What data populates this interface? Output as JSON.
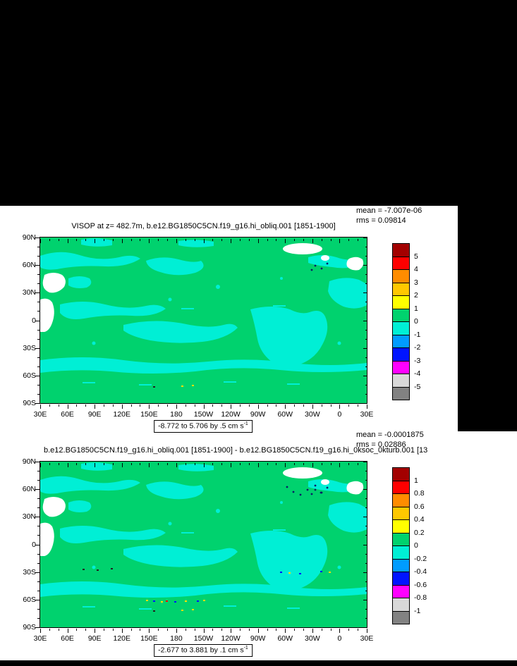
{
  "colors": {
    "background": "#000000",
    "page": "#ffffff",
    "ocean_green": "#00D26E",
    "anomaly_cyan": "#00EFD5",
    "land_white": "#ffffff",
    "frame_black": "#000000"
  },
  "colorbar_colors": [
    "#A30000",
    "#FF0000",
    "#FF8C00",
    "#FFC800",
    "#FFFF00",
    "#00D26E",
    "#00EFD5",
    "#009CFF",
    "#0014FF",
    "#FF00FF",
    "#D8D8D8",
    "#828282"
  ],
  "axes": {
    "x_labels": [
      "30E",
      "60E",
      "90E",
      "120E",
      "150E",
      "180",
      "150W",
      "120W",
      "90W",
      "60W",
      "30W",
      "0",
      "30E"
    ],
    "y_labels": [
      "90N",
      "60N",
      "30N",
      "0",
      "30S",
      "60S",
      "90S"
    ]
  },
  "panel1": {
    "mean": "mean = -7.007e-06",
    "rms": "rms = 0.09814",
    "title": "VISOP at z= 482.7m, b.e12.BG1850C5CN.f19_g16.hi_obliq.001 [1851-1900]",
    "range_label": "-8.772 to 5.706 by .5 cm s",
    "range_exp": "-1",
    "colorbar_labels": [
      "5",
      "4",
      "3",
      "2",
      "1",
      "0",
      "-1",
      "-2",
      "-3",
      "-4",
      "-5"
    ]
  },
  "panel2": {
    "mean": "mean = -0.0001875",
    "rms": "rms = 0.02886",
    "title": "b.e12.BG1850C5CN.f19_g16.hi_obliq.001 [1851-1900] - b.e12.BG1850C5CN.f19_g16.hi_0ksoc_0kturb.001 [13",
    "range_label": "-2.677 to 3.881 by .1 cm s",
    "range_exp": "-1",
    "colorbar_labels": [
      "1",
      "0.8",
      "0.6",
      "0.4",
      "0.2",
      "0",
      "-0.2",
      "-0.4",
      "-0.6",
      "-0.8",
      "-1"
    ]
  },
  "chart_data": [
    {
      "type": "heatmap",
      "title": "VISOP at z= 482.7m, b.e12.BG1850C5CN.f19_g16.hi_obliq.001 [1851-1900]",
      "variable": "VISOP",
      "depth_label": "z= 482.7m",
      "mean": -7.007e-06,
      "rms": 0.09814,
      "data_range": {
        "min": -8.772,
        "max": 5.706,
        "contour_interval": 0.5,
        "units": "cm s-1"
      },
      "colorbar": {
        "levels": [
          5,
          4,
          3,
          2,
          1,
          0,
          -1,
          -2,
          -3,
          -4,
          -5
        ],
        "position": "right"
      },
      "x_axis": {
        "ticks": [
          "30E",
          "60E",
          "90E",
          "120E",
          "150E",
          "180",
          "150W",
          "120W",
          "90W",
          "60W",
          "30W",
          "0",
          "30E"
        ]
      },
      "y_axis": {
        "ticks": [
          "90N",
          "60N",
          "30N",
          "0",
          "30S",
          "60S",
          "90S"
        ]
      },
      "projection": "cylindrical equidistant world map, left edge 30E, latitudes 90N to 90S",
      "summary": "Field is dominated by values in the 0 to 1 bin (green) with widespread patches in the -1 to 0 bin (cyan); white blobs (Greenland, Scandinavia, areas near 30-50E) are missing/land values; a few isolated colored specks elsewhere."
    },
    {
      "type": "heatmap",
      "title": "b.e12.BG1850C5CN.f19_g16.hi_obliq.001 [1851-1900] - b.e12.BG1850C5CN.f19_g16.hi_0ksoc_0kturb.001 [13",
      "variable": "VISOP difference (case1 - case2)",
      "mean": -0.0001875,
      "rms": 0.02886,
      "data_range": {
        "min": -2.677,
        "max": 3.881,
        "contour_interval": 0.1,
        "units": "cm s-1"
      },
      "colorbar": {
        "levels": [
          1,
          0.8,
          0.6,
          0.4,
          0.2,
          0,
          -0.2,
          -0.4,
          -0.6,
          -0.8,
          -1
        ],
        "position": "right"
      },
      "x_axis": {
        "ticks": [
          "30E",
          "60E",
          "90E",
          "120E",
          "150E",
          "180",
          "150W",
          "120W",
          "90W",
          "60W",
          "30W",
          "0",
          "30E"
        ]
      },
      "y_axis": {
        "ticks": [
          "90N",
          "60N",
          "30N",
          "0",
          "30S",
          "60S",
          "90S"
        ]
      },
      "projection": "cylindrical equidistant world map, left edge 30E, latitudes 90N to 90S",
      "summary": "Difference map mostly in 0 to 0.2 bin (green) with cyan patches in -0.2 to 0 bin; scattered multicolored specks near 60S and 30S; same white missing-data blobs as top panel."
    }
  ]
}
